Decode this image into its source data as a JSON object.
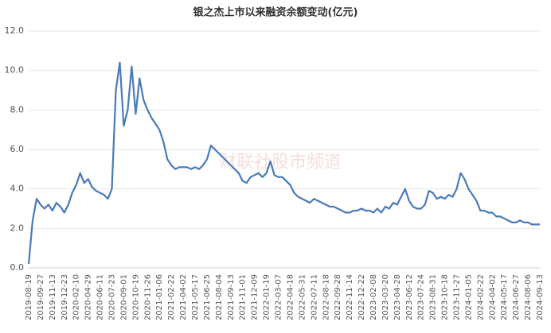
{
  "chart_data": {
    "type": "line",
    "title": "银之杰上市以来融资余额变动(亿元)",
    "watermark": "财联社股市频道",
    "categories": [
      "2019-08-19",
      null,
      null,
      "2019-09-27",
      null,
      null,
      "2019-11-13",
      null,
      null,
      "2019-12-23",
      null,
      null,
      "2020-02-10",
      null,
      null,
      "2020-04-29",
      null,
      null,
      "2020-06-11",
      null,
      null,
      "2020-07-23",
      null,
      null,
      "2020-09-01",
      null,
      null,
      "2020-10-19",
      null,
      null,
      "2020-11-26",
      null,
      null,
      "2021-01-06",
      null,
      null,
      "2021-02-22",
      null,
      null,
      "2021-04-02",
      null,
      null,
      "2021-05-17",
      null,
      null,
      "2021-06-25",
      null,
      null,
      "2021-08-04",
      null,
      null,
      "2021-09-13",
      null,
      null,
      "2021-11-01",
      null,
      null,
      "2021-12-09",
      null,
      null,
      "2022-01-19",
      null,
      null,
      "2022-03-07",
      null,
      null,
      "2022-04-18",
      null,
      null,
      "2022-05-31",
      null,
      null,
      "2022-07-11",
      null,
      null,
      "2022-08-18",
      null,
      null,
      "2022-09-28",
      null,
      null,
      "2022-11-14",
      null,
      null,
      "2022-12-22",
      null,
      null,
      "2023-02-08",
      null,
      null,
      "2023-03-20",
      null,
      null,
      "2023-04-28",
      null,
      null,
      "2023-06-12",
      null,
      null,
      "2023-07-24",
      null,
      null,
      "2023-08-31",
      null,
      null,
      "2023-10-18",
      null,
      null,
      "2023-11-27",
      null,
      null,
      "2024-01-05",
      null,
      null,
      "2024-02-22",
      null,
      null,
      "2024-04-02",
      null,
      null,
      "2024-05-17",
      null,
      null,
      "2024-06-27",
      null,
      null,
      "2024-08-06",
      null,
      null,
      "2024-09-13"
    ],
    "series": [
      {
        "name": "融资余额",
        "color": "#4a7ab8",
        "values": [
          0.2,
          2.4,
          3.5,
          3.2,
          3.0,
          3.2,
          2.9,
          3.3,
          3.1,
          2.8,
          3.2,
          3.8,
          4.2,
          4.8,
          4.3,
          4.5,
          4.1,
          3.9,
          3.8,
          3.7,
          3.5,
          4.0,
          9.0,
          10.4,
          7.2,
          8.0,
          10.2,
          7.8,
          9.6,
          8.5,
          8.0,
          7.6,
          7.3,
          7.0,
          6.4,
          5.5,
          5.2,
          5.0,
          5.1,
          5.1,
          5.1,
          5.0,
          5.1,
          5.0,
          5.2,
          5.5,
          6.2,
          6.0,
          5.8,
          5.6,
          5.4,
          5.2,
          5.0,
          4.8,
          4.4,
          4.3,
          4.6,
          4.7,
          4.8,
          4.6,
          4.8,
          5.4,
          4.7,
          4.6,
          4.6,
          4.4,
          4.2,
          3.8,
          3.6,
          3.5,
          3.4,
          3.3,
          3.5,
          3.4,
          3.3,
          3.2,
          3.1,
          3.1,
          3.0,
          2.9,
          2.8,
          2.8,
          2.9,
          2.9,
          3.0,
          2.9,
          2.9,
          2.8,
          3.0,
          2.8,
          3.1,
          3.0,
          3.3,
          3.2,
          3.6,
          4.0,
          3.4,
          3.1,
          3.0,
          3.0,
          3.2,
          3.9,
          3.8,
          3.5,
          3.6,
          3.5,
          3.7,
          3.6,
          4.0,
          4.8,
          4.5,
          4.0,
          3.7,
          3.4,
          2.9,
          2.9,
          2.8,
          2.8,
          2.6,
          2.6,
          2.5,
          2.4,
          2.3,
          2.3,
          2.4,
          2.3,
          2.3,
          2.2,
          2.2,
          2.2
        ]
      }
    ],
    "ylim": [
      0,
      12
    ],
    "yticks": [
      {
        "value": 0,
        "label": "0.0"
      },
      {
        "value": 2,
        "label": "2.0"
      },
      {
        "value": 4,
        "label": "4.0"
      },
      {
        "value": 6,
        "label": "6.0"
      },
      {
        "value": 8,
        "label": "8.0"
      },
      {
        "value": 10,
        "label": "10.0"
      },
      {
        "value": 12,
        "label": "12.0"
      }
    ],
    "grid": true
  }
}
